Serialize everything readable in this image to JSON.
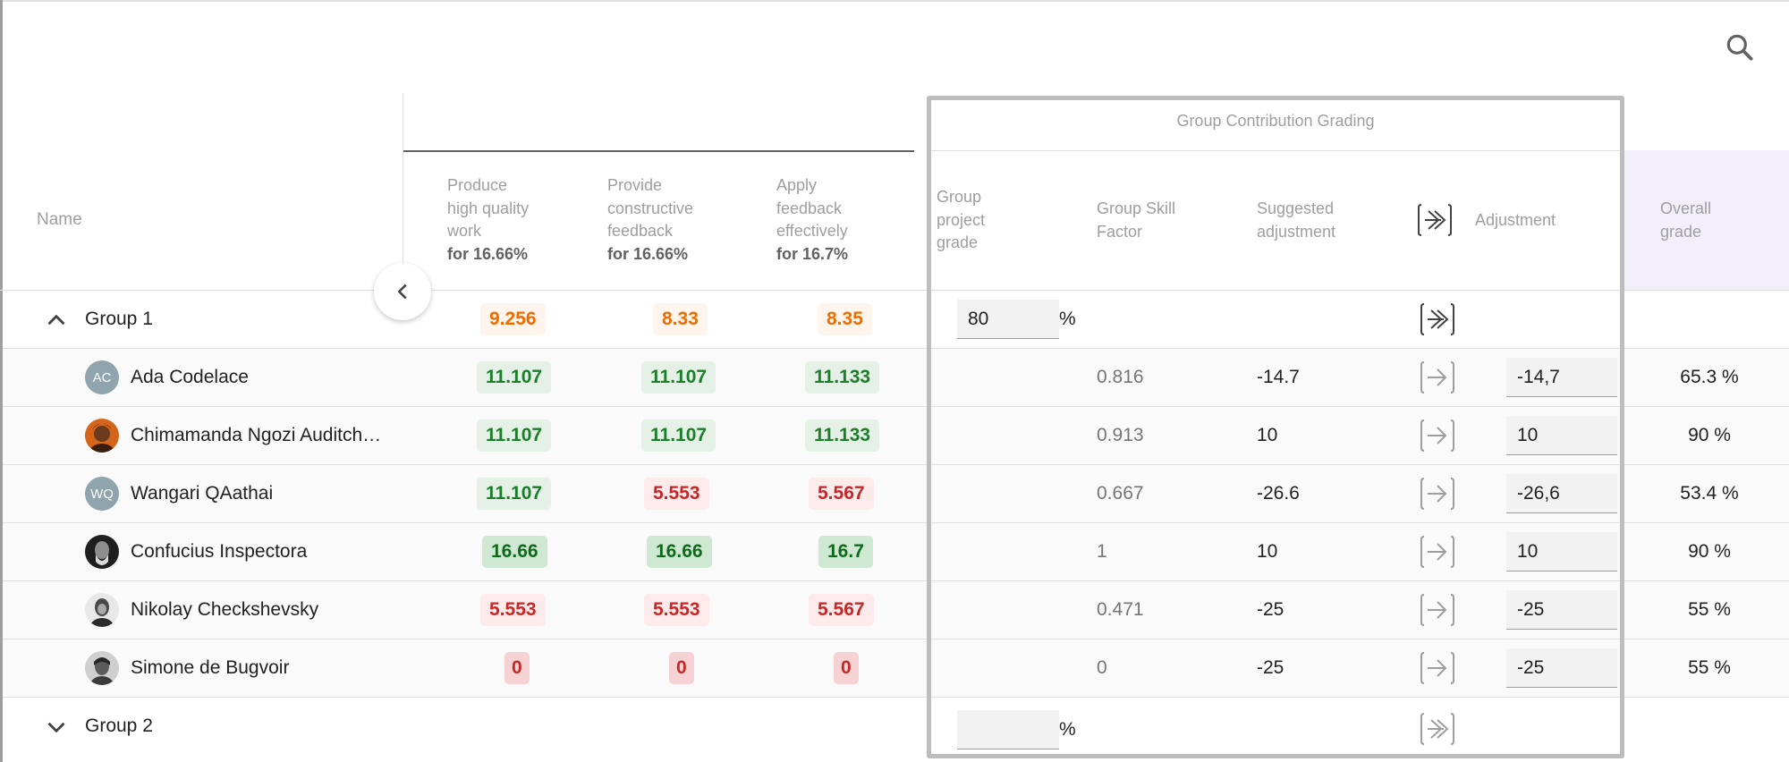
{
  "header": {
    "name_label": "Name",
    "criteria": [
      {
        "line1": "Produce",
        "line2": "high quality",
        "line3": "work",
        "weight": "for 16.66%"
      },
      {
        "line1": "Provide",
        "line2": "constructive",
        "line3": "feedback",
        "weight": "for 16.66%"
      },
      {
        "line1": "Apply",
        "line2": "feedback",
        "line3": "effectively",
        "weight": "for 16.7%"
      }
    ],
    "gcg_title": "Group Contribution Grading",
    "group_project_grade": {
      "line1": "Group",
      "line2": "project",
      "line3": "grade"
    },
    "group_skill_factor": {
      "line1": "Group Skill",
      "line2": "Factor"
    },
    "suggested_adjustment": {
      "line1": "Suggested",
      "line2": "adjustment"
    },
    "adjustment": "Adjustment",
    "overall_grade": {
      "line1": "Overall",
      "line2": "grade"
    }
  },
  "groups": [
    {
      "label": "Group 1",
      "expanded": true,
      "scores": [
        "9.256",
        "8.33",
        "8.35"
      ],
      "project_grade": "80",
      "percent_sign": "%"
    },
    {
      "label": "Group 2",
      "expanded": false,
      "project_grade": "",
      "percent_sign": "%"
    }
  ],
  "members": [
    {
      "name": "Ada Codelace",
      "initials": "AC",
      "scores": [
        "11.107",
        "11.107",
        "11.133"
      ],
      "skill_factor": "0.816",
      "suggested": "-14.7",
      "adjustment": "-14,7",
      "overall": "65.3 %"
    },
    {
      "name": "Chimamanda Ngozi Auditch…",
      "initials": "",
      "scores": [
        "11.107",
        "11.107",
        "11.133"
      ],
      "skill_factor": "0.913",
      "suggested": "10",
      "adjustment": "10",
      "overall": "90 %"
    },
    {
      "name": "Wangari QAathai",
      "initials": "WQ",
      "scores": [
        "11.107",
        "5.553",
        "5.567"
      ],
      "skill_factor": "0.667",
      "suggested": "-26.6",
      "adjustment": "-26,6",
      "overall": "53.4 %"
    },
    {
      "name": "Confucius Inspectora",
      "initials": "",
      "scores": [
        "16.66",
        "16.66",
        "16.7"
      ],
      "skill_factor": "1",
      "suggested": "10",
      "adjustment": "10",
      "overall": "90 %"
    },
    {
      "name": "Nikolay Checkshevsky",
      "initials": "",
      "scores": [
        "5.553",
        "5.553",
        "5.567"
      ],
      "skill_factor": "0.471",
      "suggested": "-25",
      "adjustment": "-25",
      "overall": "55 %"
    },
    {
      "name": "Simone de Bugvoir",
      "initials": "",
      "scores": [
        "0",
        "0",
        "0"
      ],
      "skill_factor": "0",
      "suggested": "-25",
      "adjustment": "-25",
      "overall": "55 %"
    }
  ],
  "icons": {
    "search": "search-icon",
    "collapse_left": "chevron-left-icon",
    "group_expanded": "chevron-up-icon",
    "group_collapsed": "chevron-down-icon",
    "apply_all": "double-arrow-right-icon",
    "apply_one": "arrow-right-icon"
  },
  "colors": {
    "score_orange": "#ef6c00",
    "score_green": "#1b7e2b",
    "score_red": "#c62828",
    "overall_bg": "#f3effa",
    "gcg_border": "#bdbdbd"
  }
}
